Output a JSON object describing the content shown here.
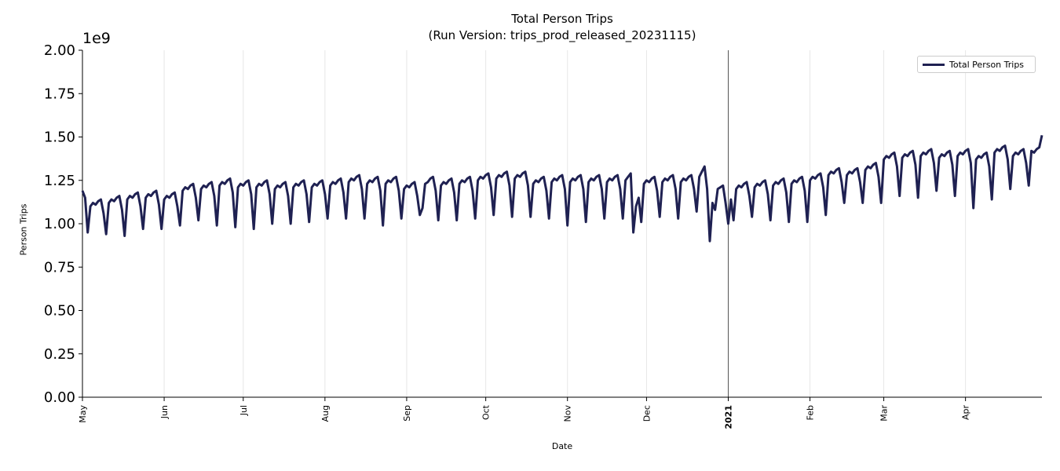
{
  "chart_data": {
    "type": "line",
    "title": "Total Person Trips",
    "subtitle": "(Run Version: trips_prod_released_20231115)",
    "xlabel": "Date",
    "ylabel": "Person Trips",
    "y_offset_label": "1e9",
    "ylim": [
      0,
      2.0
    ],
    "y_ticks": [
      "0.00",
      "0.25",
      "0.50",
      "0.75",
      "1.00",
      "1.25",
      "1.50",
      "1.75",
      "2.00"
    ],
    "x_range": [
      "2020-05-01",
      "2021-04-30"
    ],
    "x_ticks": [
      {
        "date": "2020-05-01",
        "label": "May"
      },
      {
        "date": "2020-06-01",
        "label": "Jun"
      },
      {
        "date": "2020-07-01",
        "label": "Jul"
      },
      {
        "date": "2020-08-01",
        "label": "Aug"
      },
      {
        "date": "2020-09-01",
        "label": "Sep"
      },
      {
        "date": "2020-10-01",
        "label": "Oct"
      },
      {
        "date": "2020-11-01",
        "label": "Nov"
      },
      {
        "date": "2020-12-01",
        "label": "Dec"
      },
      {
        "date": "2021-01-01",
        "label": "2021",
        "bold": true
      },
      {
        "date": "2021-02-01",
        "label": "Feb"
      },
      {
        "date": "2021-03-01",
        "label": "Mar"
      },
      {
        "date": "2021-04-01",
        "label": "Apr"
      }
    ],
    "year_marker_date": "2021-01-01",
    "grid": "vertical, monthly",
    "legend_position": "top-right",
    "series": [
      {
        "name": "Total Person Trips",
        "color": "#1f2152",
        "start_date": "2020-05-01",
        "frequency": "daily",
        "values": [
          1.19,
          1.15,
          0.95,
          1.1,
          1.12,
          1.11,
          1.13,
          1.14,
          1.06,
          0.94,
          1.12,
          1.14,
          1.13,
          1.15,
          1.16,
          1.08,
          0.93,
          1.14,
          1.16,
          1.15,
          1.17,
          1.18,
          1.1,
          0.97,
          1.15,
          1.17,
          1.16,
          1.18,
          1.19,
          1.11,
          0.97,
          1.14,
          1.16,
          1.15,
          1.17,
          1.18,
          1.1,
          0.99,
          1.19,
          1.21,
          1.2,
          1.22,
          1.23,
          1.15,
          1.02,
          1.2,
          1.22,
          1.21,
          1.23,
          1.24,
          1.16,
          0.99,
          1.22,
          1.24,
          1.23,
          1.25,
          1.26,
          1.18,
          0.98,
          1.21,
          1.23,
          1.22,
          1.24,
          1.25,
          1.17,
          0.97,
          1.21,
          1.23,
          1.22,
          1.24,
          1.25,
          1.17,
          1.0,
          1.2,
          1.22,
          1.21,
          1.23,
          1.24,
          1.16,
          1.0,
          1.21,
          1.23,
          1.22,
          1.24,
          1.25,
          1.17,
          1.01,
          1.21,
          1.23,
          1.22,
          1.24,
          1.25,
          1.17,
          1.03,
          1.22,
          1.24,
          1.23,
          1.25,
          1.26,
          1.18,
          1.03,
          1.24,
          1.26,
          1.25,
          1.27,
          1.28,
          1.2,
          1.03,
          1.23,
          1.25,
          1.24,
          1.26,
          1.27,
          1.19,
          0.99,
          1.23,
          1.25,
          1.24,
          1.26,
          1.27,
          1.19,
          1.03,
          1.2,
          1.22,
          1.21,
          1.23,
          1.24,
          1.16,
          1.05,
          1.09,
          1.23,
          1.24,
          1.26,
          1.27,
          1.19,
          1.02,
          1.22,
          1.24,
          1.23,
          1.25,
          1.26,
          1.18,
          1.02,
          1.23,
          1.25,
          1.24,
          1.26,
          1.27,
          1.19,
          1.03,
          1.25,
          1.27,
          1.26,
          1.28,
          1.29,
          1.21,
          1.05,
          1.26,
          1.28,
          1.27,
          1.29,
          1.3,
          1.22,
          1.04,
          1.26,
          1.28,
          1.27,
          1.29,
          1.3,
          1.22,
          1.04,
          1.23,
          1.25,
          1.24,
          1.26,
          1.27,
          1.19,
          1.03,
          1.24,
          1.26,
          1.25,
          1.27,
          1.28,
          1.2,
          0.99,
          1.24,
          1.26,
          1.25,
          1.27,
          1.28,
          1.2,
          1.01,
          1.24,
          1.26,
          1.25,
          1.27,
          1.28,
          1.2,
          1.03,
          1.24,
          1.26,
          1.25,
          1.27,
          1.28,
          1.2,
          1.03,
          1.25,
          1.27,
          1.29,
          0.95,
          1.1,
          1.15,
          1.01,
          1.23,
          1.25,
          1.24,
          1.26,
          1.27,
          1.19,
          1.04,
          1.24,
          1.26,
          1.25,
          1.27,
          1.28,
          1.2,
          1.03,
          1.24,
          1.26,
          1.25,
          1.27,
          1.28,
          1.2,
          1.07,
          1.27,
          1.3,
          1.33,
          1.2,
          0.9,
          1.12,
          1.08,
          1.2,
          1.21,
          1.22,
          1.12,
          1.0,
          1.14,
          1.02,
          1.2,
          1.22,
          1.21,
          1.23,
          1.24,
          1.16,
          1.04,
          1.21,
          1.23,
          1.22,
          1.24,
          1.25,
          1.17,
          1.02,
          1.22,
          1.24,
          1.23,
          1.25,
          1.26,
          1.18,
          1.01,
          1.23,
          1.25,
          1.24,
          1.26,
          1.27,
          1.19,
          1.01,
          1.25,
          1.27,
          1.26,
          1.28,
          1.29,
          1.21,
          1.05,
          1.28,
          1.3,
          1.29,
          1.31,
          1.32,
          1.24,
          1.12,
          1.28,
          1.3,
          1.29,
          1.31,
          1.32,
          1.24,
          1.12,
          1.31,
          1.33,
          1.32,
          1.34,
          1.35,
          1.27,
          1.12,
          1.37,
          1.39,
          1.38,
          1.4,
          1.41,
          1.33,
          1.16,
          1.38,
          1.4,
          1.39,
          1.41,
          1.42,
          1.34,
          1.15,
          1.39,
          1.41,
          1.4,
          1.42,
          1.43,
          1.35,
          1.19,
          1.38,
          1.4,
          1.39,
          1.41,
          1.42,
          1.34,
          1.16,
          1.39,
          1.41,
          1.4,
          1.42,
          1.43,
          1.35,
          1.09,
          1.37,
          1.39,
          1.38,
          1.4,
          1.41,
          1.33,
          1.14,
          1.41,
          1.43,
          1.42,
          1.44,
          1.45,
          1.37,
          1.2,
          1.39,
          1.41,
          1.4,
          1.42,
          1.43,
          1.35,
          1.22,
          1.42,
          1.41,
          1.43,
          1.44,
          1.51
        ]
      }
    ]
  }
}
